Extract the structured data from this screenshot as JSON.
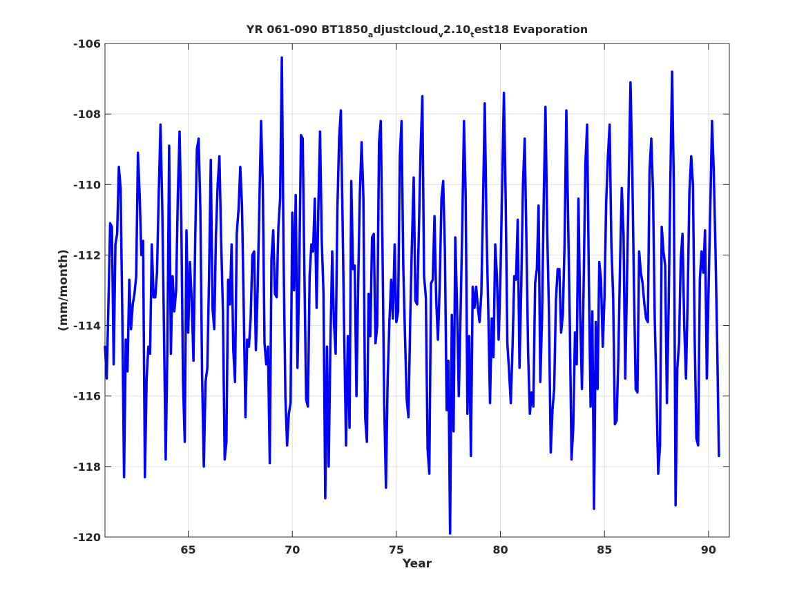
{
  "figure": {
    "title_main": "YR 061-090 BT1850",
    "title_sub1": "a",
    "title_mid1": "djustcloud",
    "title_sub2": "v",
    "title_mid2": "2.10",
    "title_sub3": "t",
    "title_end": "est18 Evaporation"
  },
  "colors": {
    "series": "#0000ff",
    "axis": "#262626",
    "grid": "#dfdfdf",
    "background": "#ffffff"
  },
  "chart_data": {
    "type": "line",
    "title": "YR 061-090 BT1850_adjustcloud_v2.10_test18 Evaporation",
    "xlabel": "Year",
    "ylabel": "(mm/month)",
    "xlim": [
      61,
      91
    ],
    "ylim": [
      -120,
      -106
    ],
    "xticks": [
      65,
      70,
      75,
      80,
      85,
      90
    ],
    "yticks": [
      -120,
      -118,
      -116,
      -114,
      -112,
      -110,
      -108,
      -106
    ],
    "xtick_labels": [
      "65",
      "70",
      "75",
      "80",
      "85",
      "90"
    ],
    "ytick_labels": [
      "-120",
      "-118",
      "-116",
      "-114",
      "-112",
      "-110",
      "-108",
      "-106"
    ],
    "grid": true,
    "legend": "none",
    "series": [
      {
        "x_start": 61.0,
        "x_step": 0.0833333,
        "values": [
          -114.6,
          -115.5,
          -113.4,
          -111.1,
          -111.2,
          -115.1,
          -111.7,
          -111.4,
          -109.5,
          -110.1,
          -113.7,
          -118.3,
          -114.4,
          -115.3,
          -112.7,
          -114.1,
          -113.4,
          -113.1,
          -112.6,
          -109.1,
          -110.3,
          -112.0,
          -111.6,
          -118.3,
          -115.5,
          -114.6,
          -114.8,
          -111.7,
          -113.2,
          -113.2,
          -112.5,
          -110.3,
          -108.3,
          -110.6,
          -114.1,
          -117.8,
          -114.6,
          -108.9,
          -114.8,
          -112.6,
          -113.6,
          -113.0,
          -110.3,
          -108.5,
          -111.0,
          -115.6,
          -117.3,
          -111.3,
          -114.2,
          -112.2,
          -113.3,
          -115.0,
          -111.6,
          -109.0,
          -108.7,
          -110.7,
          -115.4,
          -118.0,
          -115.6,
          -115.2,
          -112.6,
          -109.3,
          -113.5,
          -114.1,
          -111.4,
          -110.0,
          -109.2,
          -111.6,
          -113.6,
          -117.8,
          -117.3,
          -112.7,
          -113.4,
          -111.7,
          -114.7,
          -115.6,
          -111.4,
          -110.7,
          -109.5,
          -110.6,
          -113.5,
          -116.6,
          -114.4,
          -114.6,
          -113.8,
          -112.0,
          -111.9,
          -114.7,
          -113.0,
          -110.6,
          -108.2,
          -110.0,
          -114.5,
          -115.1,
          -114.6,
          -117.9,
          -112.1,
          -111.3,
          -113.1,
          -113.2,
          -111.2,
          -110.4,
          -106.4,
          -112.0,
          -116.0,
          -117.4,
          -116.5,
          -116.2,
          -110.8,
          -113.0,
          -110.3,
          -115.2,
          -112.6,
          -108.6,
          -108.7,
          -112.6,
          -116.1,
          -116.3,
          -112.6,
          -111.7,
          -111.9,
          -110.4,
          -113.5,
          -110.7,
          -108.5,
          -111.6,
          -113.1,
          -118.9,
          -114.6,
          -118.0,
          -114.5,
          -111.9,
          -113.9,
          -114.8,
          -110.7,
          -108.7,
          -107.9,
          -111.0,
          -114.4,
          -117.4,
          -114.3,
          -116.9,
          -109.9,
          -112.4,
          -112.3,
          -116.0,
          -112.8,
          -110.2,
          -108.8,
          -110.4,
          -116.6,
          -117.3,
          -113.1,
          -114.3,
          -111.5,
          -111.4,
          -114.5,
          -114.0,
          -108.8,
          -108.2,
          -111.8,
          -116.2,
          -118.6,
          -115.5,
          -113.9,
          -112.7,
          -113.8,
          -111.7,
          -113.9,
          -113.6,
          -109.2,
          -108.2,
          -112.3,
          -114.3,
          -116.1,
          -116.6,
          -113.8,
          -111.6,
          -109.8,
          -113.3,
          -113.4,
          -111.3,
          -109.0,
          -107.5,
          -112.6,
          -113.2,
          -117.5,
          -118.2,
          -112.8,
          -112.7,
          -110.9,
          -113.3,
          -114.4,
          -112.9,
          -110.4,
          -109.9,
          -111.9,
          -116.4,
          -115.0,
          -119.9,
          -113.7,
          -117.0,
          -111.5,
          -113.5,
          -116.0,
          -113.7,
          -111.2,
          -108.2,
          -110.4,
          -116.5,
          -114.3,
          -117.7,
          -112.9,
          -113.5,
          -112.9,
          -113.5,
          -113.9,
          -113.1,
          -110.5,
          -107.7,
          -111.2,
          -113.6,
          -116.2,
          -113.8,
          -114.9,
          -111.7,
          -112.6,
          -114.4,
          -112.7,
          -110.1,
          -107.4,
          -110.3,
          -114.5,
          -115.3,
          -116.2,
          -114.6,
          -112.6,
          -112.7,
          -111.0,
          -115.2,
          -112.9,
          -110.0,
          -108.7,
          -111.6,
          -114.8,
          -116.5,
          -115.9,
          -116.3,
          -112.8,
          -112.4,
          -110.6,
          -115.6,
          -113.8,
          -110.4,
          -107.8,
          -111.3,
          -113.6,
          -117.6,
          -116.4,
          -115.8,
          -113.3,
          -112.4,
          -112.4,
          -114.2,
          -113.7,
          -111.7,
          -107.9,
          -110.9,
          -113.9,
          -117.8,
          -116.9,
          -114.2,
          -115.1,
          -110.4,
          -113.6,
          -115.8,
          -112.8,
          -109.4,
          -108.3,
          -112.7,
          -116.3,
          -113.6,
          -119.2,
          -113.9,
          -115.8,
          -112.2,
          -112.7,
          -114.6,
          -113.2,
          -110.5,
          -109.2,
          -108.3,
          -111.7,
          -113.2,
          -116.8,
          -116.7,
          -114.9,
          -112.2,
          -110.1,
          -111.4,
          -115.5,
          -112.7,
          -109.8,
          -107.1,
          -109.5,
          -112.9,
          -115.8,
          -115.9,
          -111.9,
          -112.5,
          -112.8,
          -113.4,
          -113.8,
          -113.9,
          -109.6,
          -108.7,
          -110.2,
          -113.8,
          -115.9,
          -118.2,
          -117.4,
          -111.2,
          -111.9,
          -112.3,
          -116.2,
          -113.5,
          -109.9,
          -106.8,
          -110.0,
          -119.1,
          -115.2,
          -114.5,
          -112.1,
          -111.4,
          -114.0,
          -115.5,
          -113.2,
          -110.2,
          -109.2,
          -110.0,
          -114.3,
          -117.2,
          -117.4,
          -112.7,
          -111.9,
          -112.5,
          -111.3,
          -115.5,
          -113.0,
          -110.7,
          -108.2,
          -109.6,
          -111.8,
          -114.5,
          -117.7
        ]
      }
    ]
  }
}
